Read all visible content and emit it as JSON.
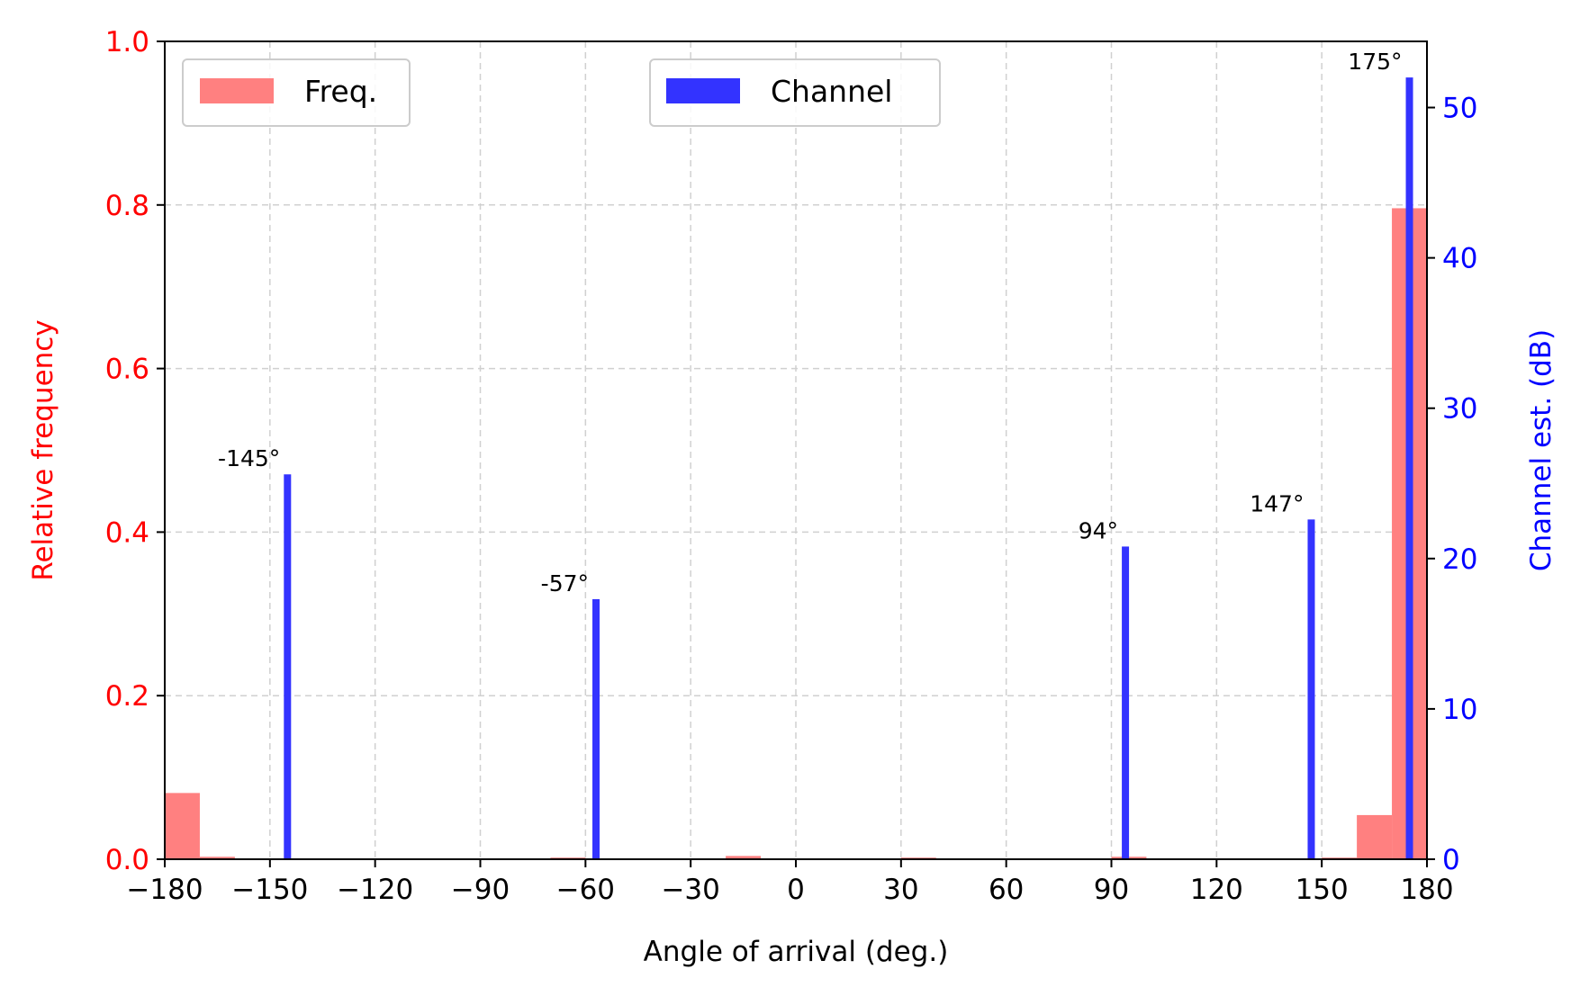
{
  "chart_data": {
    "type": "bar",
    "xlabel": "Angle of arrival (deg.)",
    "ylabel_left": "Relative frequency",
    "ylabel_right": "Channel est. (dB)",
    "xlim": [
      -180,
      180
    ],
    "ylim_left": [
      0,
      1.0
    ],
    "ylim_right": [
      0,
      54.4
    ],
    "xticks": [
      -180,
      -150,
      -120,
      -90,
      -60,
      -30,
      0,
      30,
      60,
      90,
      120,
      150,
      180
    ],
    "xtick_labels": [
      "−180",
      "−150",
      "−120",
      "−90",
      "−60",
      "−30",
      "0",
      "30",
      "60",
      "90",
      "120",
      "150",
      "180"
    ],
    "yticks_left": [
      "0.0",
      "0.2",
      "0.4",
      "0.6",
      "0.8",
      "1.0"
    ],
    "yticks_right": [
      "0",
      "10",
      "20",
      "30",
      "40",
      "50"
    ],
    "grid": true,
    "colors": {
      "freq": "#ff8080",
      "channel": "#3333ff",
      "left_axis": "#ff0000",
      "right_axis": "#0000ff"
    },
    "series": [
      {
        "name": "Freq.",
        "axis": "left",
        "bin_width": 10,
        "bins": [
          {
            "x": -175,
            "value": 0.081
          },
          {
            "x": -165,
            "value": 0.003
          },
          {
            "x": -125,
            "value": 0.001
          },
          {
            "x": -85,
            "value": 0.001
          },
          {
            "x": -65,
            "value": 0.002
          },
          {
            "x": -55,
            "value": 0.001
          },
          {
            "x": -15,
            "value": 0.004
          },
          {
            "x": -5,
            "value": 0.001
          },
          {
            "x": 25,
            "value": 0.001
          },
          {
            "x": 35,
            "value": 0.002
          },
          {
            "x": 85,
            "value": 0.001
          },
          {
            "x": 95,
            "value": 0.003
          },
          {
            "x": 125,
            "value": 0.001
          },
          {
            "x": 145,
            "value": 0.001
          },
          {
            "x": 155,
            "value": 0.002
          },
          {
            "x": 165,
            "value": 0.054
          },
          {
            "x": 175,
            "value": 0.796
          }
        ]
      },
      {
        "name": "Channel",
        "axis": "right",
        "peaks": [
          {
            "x": -145,
            "value": 25.6,
            "label": "-145°"
          },
          {
            "x": -57,
            "value": 17.3,
            "label": "-57°"
          },
          {
            "x": 94,
            "value": 20.8,
            "label": "94°"
          },
          {
            "x": 147,
            "value": 22.6,
            "label": "147°"
          },
          {
            "x": 175,
            "value": 52.0,
            "label": "175°"
          }
        ]
      }
    ],
    "legends": [
      {
        "label": "Freq.",
        "position": "upper-left"
      },
      {
        "label": "Channel",
        "position": "upper-center"
      }
    ]
  }
}
